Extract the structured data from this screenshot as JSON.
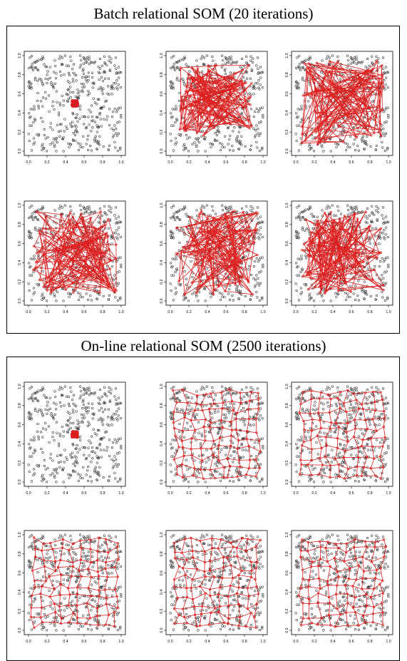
{
  "sections": [
    {
      "title": "Batch relational SOM (20 iterations)"
    },
    {
      "title": "On-line relational SOM (2500 iterations)"
    }
  ],
  "colors": {
    "data_points": "#333333",
    "prototype_grid": "#dd1f1f",
    "frame": "#000000"
  },
  "chart_data": [
    {
      "type": "scatter",
      "section": 0,
      "panel": 0,
      "state": "initial",
      "xlim": [
        0,
        1
      ],
      "ylim": [
        0,
        1
      ],
      "xticks": [
        "0.0",
        "0.2",
        "0.4",
        "0.6",
        "0.8",
        "1.0"
      ],
      "yticks": [
        "0.0",
        "0.2",
        "0.4",
        "0.6",
        "0.8",
        "1.0"
      ],
      "grid": false
    },
    {
      "type": "scatter",
      "section": 0,
      "panel": 1,
      "state": "batch-early",
      "xlim": [
        0,
        1
      ],
      "ylim": [
        0,
        1
      ],
      "xticks": [
        "0.0",
        "0.2",
        "0.4",
        "0.6",
        "0.8",
        "1.0"
      ],
      "yticks": [
        "0.0",
        "0.2",
        "0.4",
        "0.6",
        "0.8",
        "1.0"
      ],
      "grid": false
    },
    {
      "type": "scatter",
      "section": 0,
      "panel": 2,
      "state": "batch-mid",
      "xlim": [
        0,
        1
      ],
      "ylim": [
        0,
        1
      ],
      "xticks": [
        "0.0",
        "0.2",
        "0.4",
        "0.6",
        "0.8",
        "1.0"
      ],
      "yticks": [
        "0.0",
        "0.2",
        "0.4",
        "0.6",
        "0.8",
        "1.0"
      ],
      "grid": false
    },
    {
      "type": "scatter",
      "section": 0,
      "panel": 3,
      "state": "batch-mid",
      "xlim": [
        0,
        1
      ],
      "ylim": [
        0,
        1
      ],
      "xticks": [
        "0.0",
        "0.2",
        "0.4",
        "0.6",
        "0.8",
        "1.0"
      ],
      "yticks": [
        "0.0",
        "0.2",
        "0.4",
        "0.6",
        "0.8",
        "1.0"
      ],
      "grid": false
    },
    {
      "type": "scatter",
      "section": 0,
      "panel": 4,
      "state": "batch-late",
      "xlim": [
        0,
        1
      ],
      "ylim": [
        0,
        1
      ],
      "xticks": [
        "0.0",
        "0.2",
        "0.4",
        "0.6",
        "0.8",
        "1.0"
      ],
      "yticks": [
        "0.0",
        "0.2",
        "0.4",
        "0.6",
        "0.8",
        "1.0"
      ],
      "grid": false
    },
    {
      "type": "scatter",
      "section": 0,
      "panel": 5,
      "state": "batch-late",
      "xlim": [
        0,
        1
      ],
      "ylim": [
        0,
        1
      ],
      "xticks": [
        "0.0",
        "0.2",
        "0.4",
        "0.6",
        "0.8",
        "1.0"
      ],
      "yticks": [
        "0.0",
        "0.2",
        "0.4",
        "0.6",
        "0.8",
        "1.0"
      ],
      "grid": false
    },
    {
      "type": "scatter",
      "section": 1,
      "panel": 0,
      "state": "initial",
      "xlim": [
        0,
        1
      ],
      "ylim": [
        0,
        1
      ],
      "xticks": [
        "0.0",
        "0.2",
        "0.4",
        "0.6",
        "0.8",
        "1.0"
      ],
      "yticks": [
        "0.0",
        "0.2",
        "0.4",
        "0.6",
        "0.8",
        "1.0"
      ],
      "grid": false
    },
    {
      "type": "scatter",
      "section": 1,
      "panel": 1,
      "state": "online",
      "xlim": [
        0,
        1
      ],
      "ylim": [
        0,
        1
      ],
      "xticks": [
        "0.0",
        "0.2",
        "0.4",
        "0.6",
        "0.8",
        "1.0"
      ],
      "yticks": [
        "0.0",
        "0.2",
        "0.4",
        "0.6",
        "0.8",
        "1.0"
      ],
      "grid": false
    },
    {
      "type": "scatter",
      "section": 1,
      "panel": 2,
      "state": "online",
      "xlim": [
        0,
        1
      ],
      "ylim": [
        0,
        1
      ],
      "xticks": [
        "0.0",
        "0.2",
        "0.4",
        "0.6",
        "0.8",
        "1.0"
      ],
      "yticks": [
        "0.0",
        "0.2",
        "0.4",
        "0.6",
        "0.8",
        "1.0"
      ],
      "grid": false
    },
    {
      "type": "scatter",
      "section": 1,
      "panel": 3,
      "state": "online",
      "xlim": [
        0,
        1
      ],
      "ylim": [
        0,
        1
      ],
      "xticks": [
        "0.0",
        "0.2",
        "0.4",
        "0.6",
        "0.8",
        "1.0"
      ],
      "yticks": [
        "0.0",
        "0.2",
        "0.4",
        "0.6",
        "0.8",
        "1.0"
      ],
      "grid": false
    },
    {
      "type": "scatter",
      "section": 1,
      "panel": 4,
      "state": "online",
      "xlim": [
        0,
        1
      ],
      "ylim": [
        0,
        1
      ],
      "xticks": [
        "0.0",
        "0.2",
        "0.4",
        "0.6",
        "0.8",
        "1.0"
      ],
      "yticks": [
        "0.0",
        "0.2",
        "0.4",
        "0.6",
        "0.8",
        "1.0"
      ],
      "grid": false
    },
    {
      "type": "scatter",
      "section": 1,
      "panel": 5,
      "state": "online",
      "xlim": [
        0,
        1
      ],
      "ylim": [
        0,
        1
      ],
      "xticks": [
        "0.0",
        "0.2",
        "0.4",
        "0.6",
        "0.8",
        "1.0"
      ],
      "yticks": [
        "0.0",
        "0.2",
        "0.4",
        "0.6",
        "0.8",
        "1.0"
      ],
      "grid": false
    }
  ]
}
